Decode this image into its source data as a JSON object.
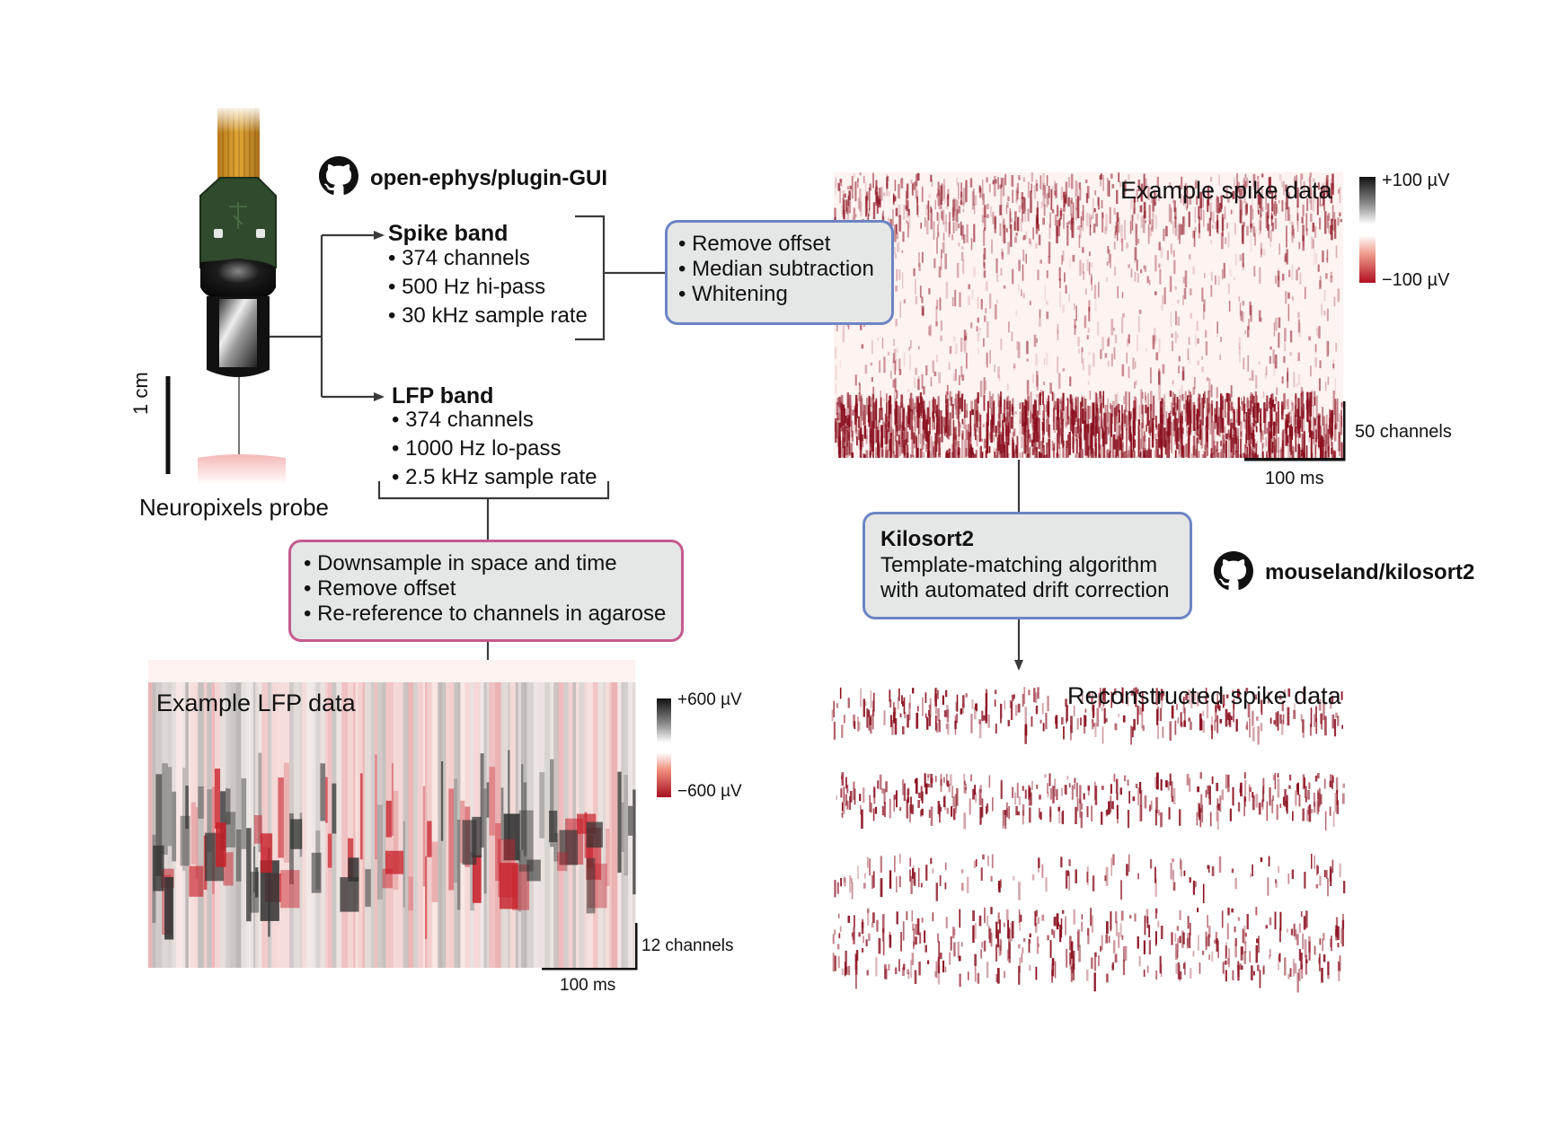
{
  "colors": {
    "arrow": "#3a3a3a",
    "box_fill": "#e5e6e6",
    "box_border_blue": "#6c84c4",
    "box_border_pink": "#c45a8e",
    "spike_red": "#8a0f1e",
    "lfp_red": "#c8202a",
    "lfp_gray": "#333333"
  },
  "icons": {
    "github": "github-icon"
  },
  "probe": {
    "label": "Neuropixels probe",
    "scale_label": "1 cm"
  },
  "repo_top": "open-ephys/plugin-GUI",
  "repo_bottom": "mouseland/kilosort2",
  "spike_band": {
    "title": "Spike band",
    "items": [
      "374 channels",
      "500 Hz hi-pass",
      "30 kHz sample rate"
    ]
  },
  "lfp_band": {
    "title": "LFP band",
    "items": [
      "374 channels",
      "1000 Hz lo-pass",
      "2.5 kHz sample rate"
    ]
  },
  "spike_processing": {
    "items": [
      "Remove offset",
      "Median subtraction",
      "Whitening"
    ]
  },
  "lfp_processing": {
    "items": [
      "Downsample in space and time",
      "Remove offset",
      "Re-reference to channels in agarose"
    ]
  },
  "kilosort": {
    "title": "Kilosort2",
    "line1": "Template-matching algorithm",
    "line2": "with automated drift correction"
  },
  "spike_panel": {
    "title": "Example spike data",
    "cbar_max": "+100 µV",
    "cbar_min": "−100 µV",
    "scale_channels": "50 channels",
    "scale_time": "100 ms"
  },
  "lfp_panel": {
    "title": "Example LFP data",
    "cbar_max": "+600 µV",
    "cbar_min": "−600 µV",
    "scale_channels": "12 channels",
    "scale_time": "100 ms"
  },
  "recon_panel": {
    "title": "Reconstructed spike data"
  }
}
